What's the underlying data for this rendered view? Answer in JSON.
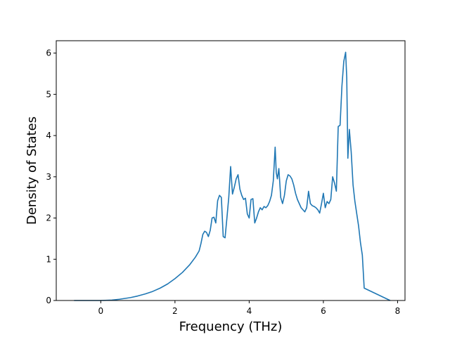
{
  "chart_data": {
    "type": "line",
    "title": "",
    "xlabel": "Frequency (THz)",
    "ylabel": "Density of States",
    "xlim": [
      -1.2,
      8.2
    ],
    "ylim": [
      0,
      6.3
    ],
    "xticks": [
      0,
      2,
      4,
      6,
      8
    ],
    "yticks": [
      0,
      1,
      2,
      3,
      4,
      5,
      6
    ],
    "grid": false,
    "series": [
      {
        "color": "#1f77b4",
        "x": [
          -0.72,
          0.0,
          0.3,
          0.5,
          0.8,
          1.0,
          1.2,
          1.4,
          1.6,
          1.8,
          2.0,
          2.2,
          2.4,
          2.55,
          2.65,
          2.7,
          2.75,
          2.8,
          2.85,
          2.9,
          2.95,
          3.0,
          3.05,
          3.1,
          3.15,
          3.2,
          3.25,
          3.3,
          3.35,
          3.4,
          3.45,
          3.5,
          3.55,
          3.6,
          3.65,
          3.7,
          3.75,
          3.8,
          3.85,
          3.9,
          3.95,
          4.0,
          4.05,
          4.1,
          4.15,
          4.2,
          4.25,
          4.3,
          4.35,
          4.4,
          4.45,
          4.5,
          4.55,
          4.6,
          4.65,
          4.7,
          4.73,
          4.76,
          4.8,
          4.85,
          4.9,
          4.95,
          5.0,
          5.05,
          5.1,
          5.15,
          5.2,
          5.25,
          5.3,
          5.4,
          5.5,
          5.55,
          5.6,
          5.65,
          5.7,
          5.75,
          5.8,
          5.85,
          5.9,
          5.95,
          6.0,
          6.05,
          6.1,
          6.15,
          6.2,
          6.25,
          6.3,
          6.35,
          6.4,
          6.45,
          6.5,
          6.55,
          6.6,
          6.63,
          6.66,
          6.7,
          6.75,
          6.8,
          6.85,
          6.9,
          6.95,
          7.0,
          7.05,
          7.1,
          7.8
        ],
        "y": [
          0,
          0.0,
          0.01,
          0.03,
          0.07,
          0.11,
          0.16,
          0.22,
          0.3,
          0.4,
          0.53,
          0.68,
          0.87,
          1.05,
          1.2,
          1.38,
          1.6,
          1.68,
          1.65,
          1.55,
          1.7,
          2.0,
          2.02,
          1.88,
          2.42,
          2.55,
          2.5,
          1.55,
          1.52,
          2.0,
          2.5,
          3.25,
          2.58,
          2.75,
          2.95,
          3.05,
          2.7,
          2.55,
          2.45,
          2.48,
          2.1,
          2.0,
          2.45,
          2.47,
          1.88,
          2.0,
          2.15,
          2.25,
          2.2,
          2.28,
          2.25,
          2.3,
          2.4,
          2.55,
          2.9,
          3.72,
          3.1,
          2.95,
          3.2,
          2.5,
          2.35,
          2.55,
          2.9,
          3.05,
          3.02,
          2.95,
          2.8,
          2.6,
          2.45,
          2.25,
          2.15,
          2.25,
          2.65,
          2.35,
          2.3,
          2.28,
          2.25,
          2.2,
          2.12,
          2.35,
          2.6,
          2.25,
          2.4,
          2.35,
          2.45,
          3.0,
          2.85,
          2.65,
          4.22,
          4.25,
          5.2,
          5.8,
          6.02,
          5.4,
          3.45,
          4.15,
          3.6,
          2.8,
          2.4,
          2.1,
          1.8,
          1.4,
          1.1,
          0.3,
          0
        ]
      }
    ]
  }
}
